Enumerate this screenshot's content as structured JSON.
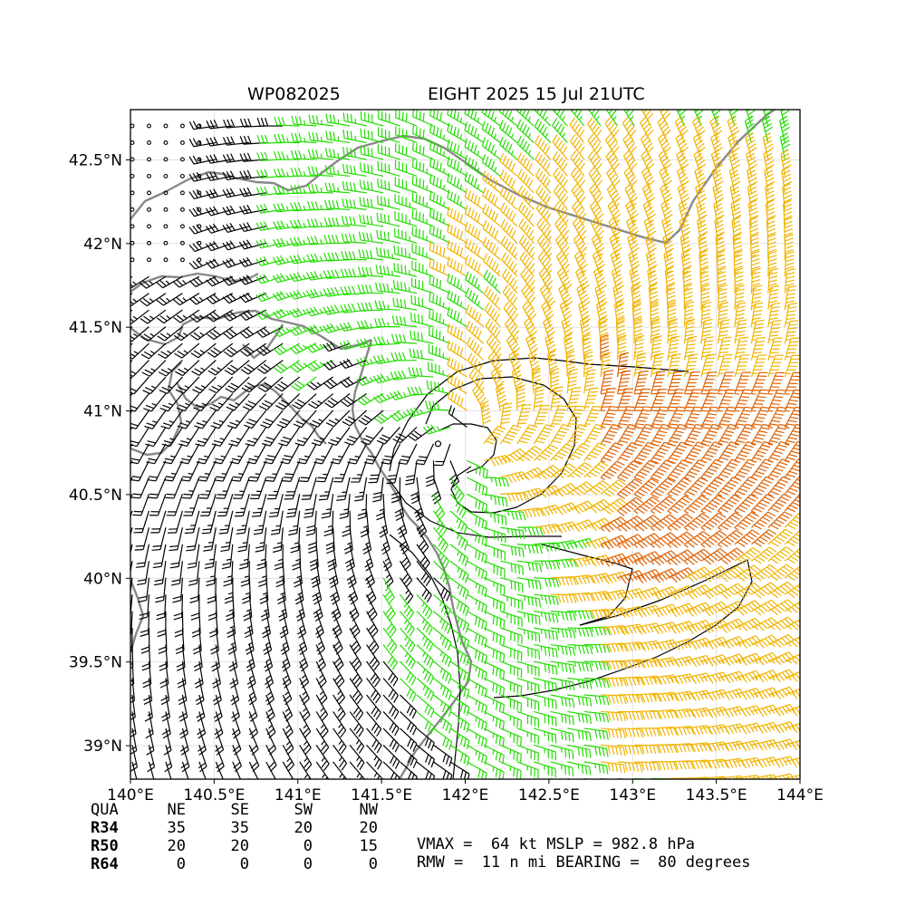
{
  "title": {
    "left": "WP082025",
    "right": "EIGHT 2025 15 Jul 21UTC"
  },
  "map": {
    "lon_range": [
      140.0,
      144.0
    ],
    "lat_range": [
      38.8,
      42.8
    ],
    "x_tick_labels": [
      "140°E",
      "140.5°E",
      "141°E",
      "141.5°E",
      "142°E",
      "142.5°E",
      "143°E",
      "143.5°E",
      "144°E"
    ],
    "y_tick_labels": [
      "39°N",
      "39.5°N",
      "40°N",
      "40.5°N",
      "41°N",
      "41.5°N",
      "42°N",
      "42.5°N"
    ],
    "storm_center": {
      "lon": 142.0,
      "lat": 40.82
    },
    "colors": {
      "coastline": "#888888",
      "barb_below_34kt": "#000000",
      "barb_34_50kt": "#22dd00",
      "barb_50_64kt": "#f0b400",
      "barb_64kt_plus": "#e06000",
      "isobar": "#000000"
    }
  },
  "wind_radii": {
    "header": [
      "QUA",
      "NE",
      "SE",
      "SW",
      "NW"
    ],
    "rows": [
      {
        "label": "R34",
        "values": [
          "35",
          "35",
          "20",
          "20"
        ]
      },
      {
        "label": "R50",
        "values": [
          "20",
          "20",
          "0",
          "15"
        ]
      },
      {
        "label": "R64",
        "values": [
          "0",
          "0",
          "0",
          "0"
        ]
      }
    ]
  },
  "summary": {
    "line1": "VMAX =  64 kt MSLP = 982.8 hPa",
    "line2": "RMW =  11 n mi BEARING =  80 degrees"
  }
}
